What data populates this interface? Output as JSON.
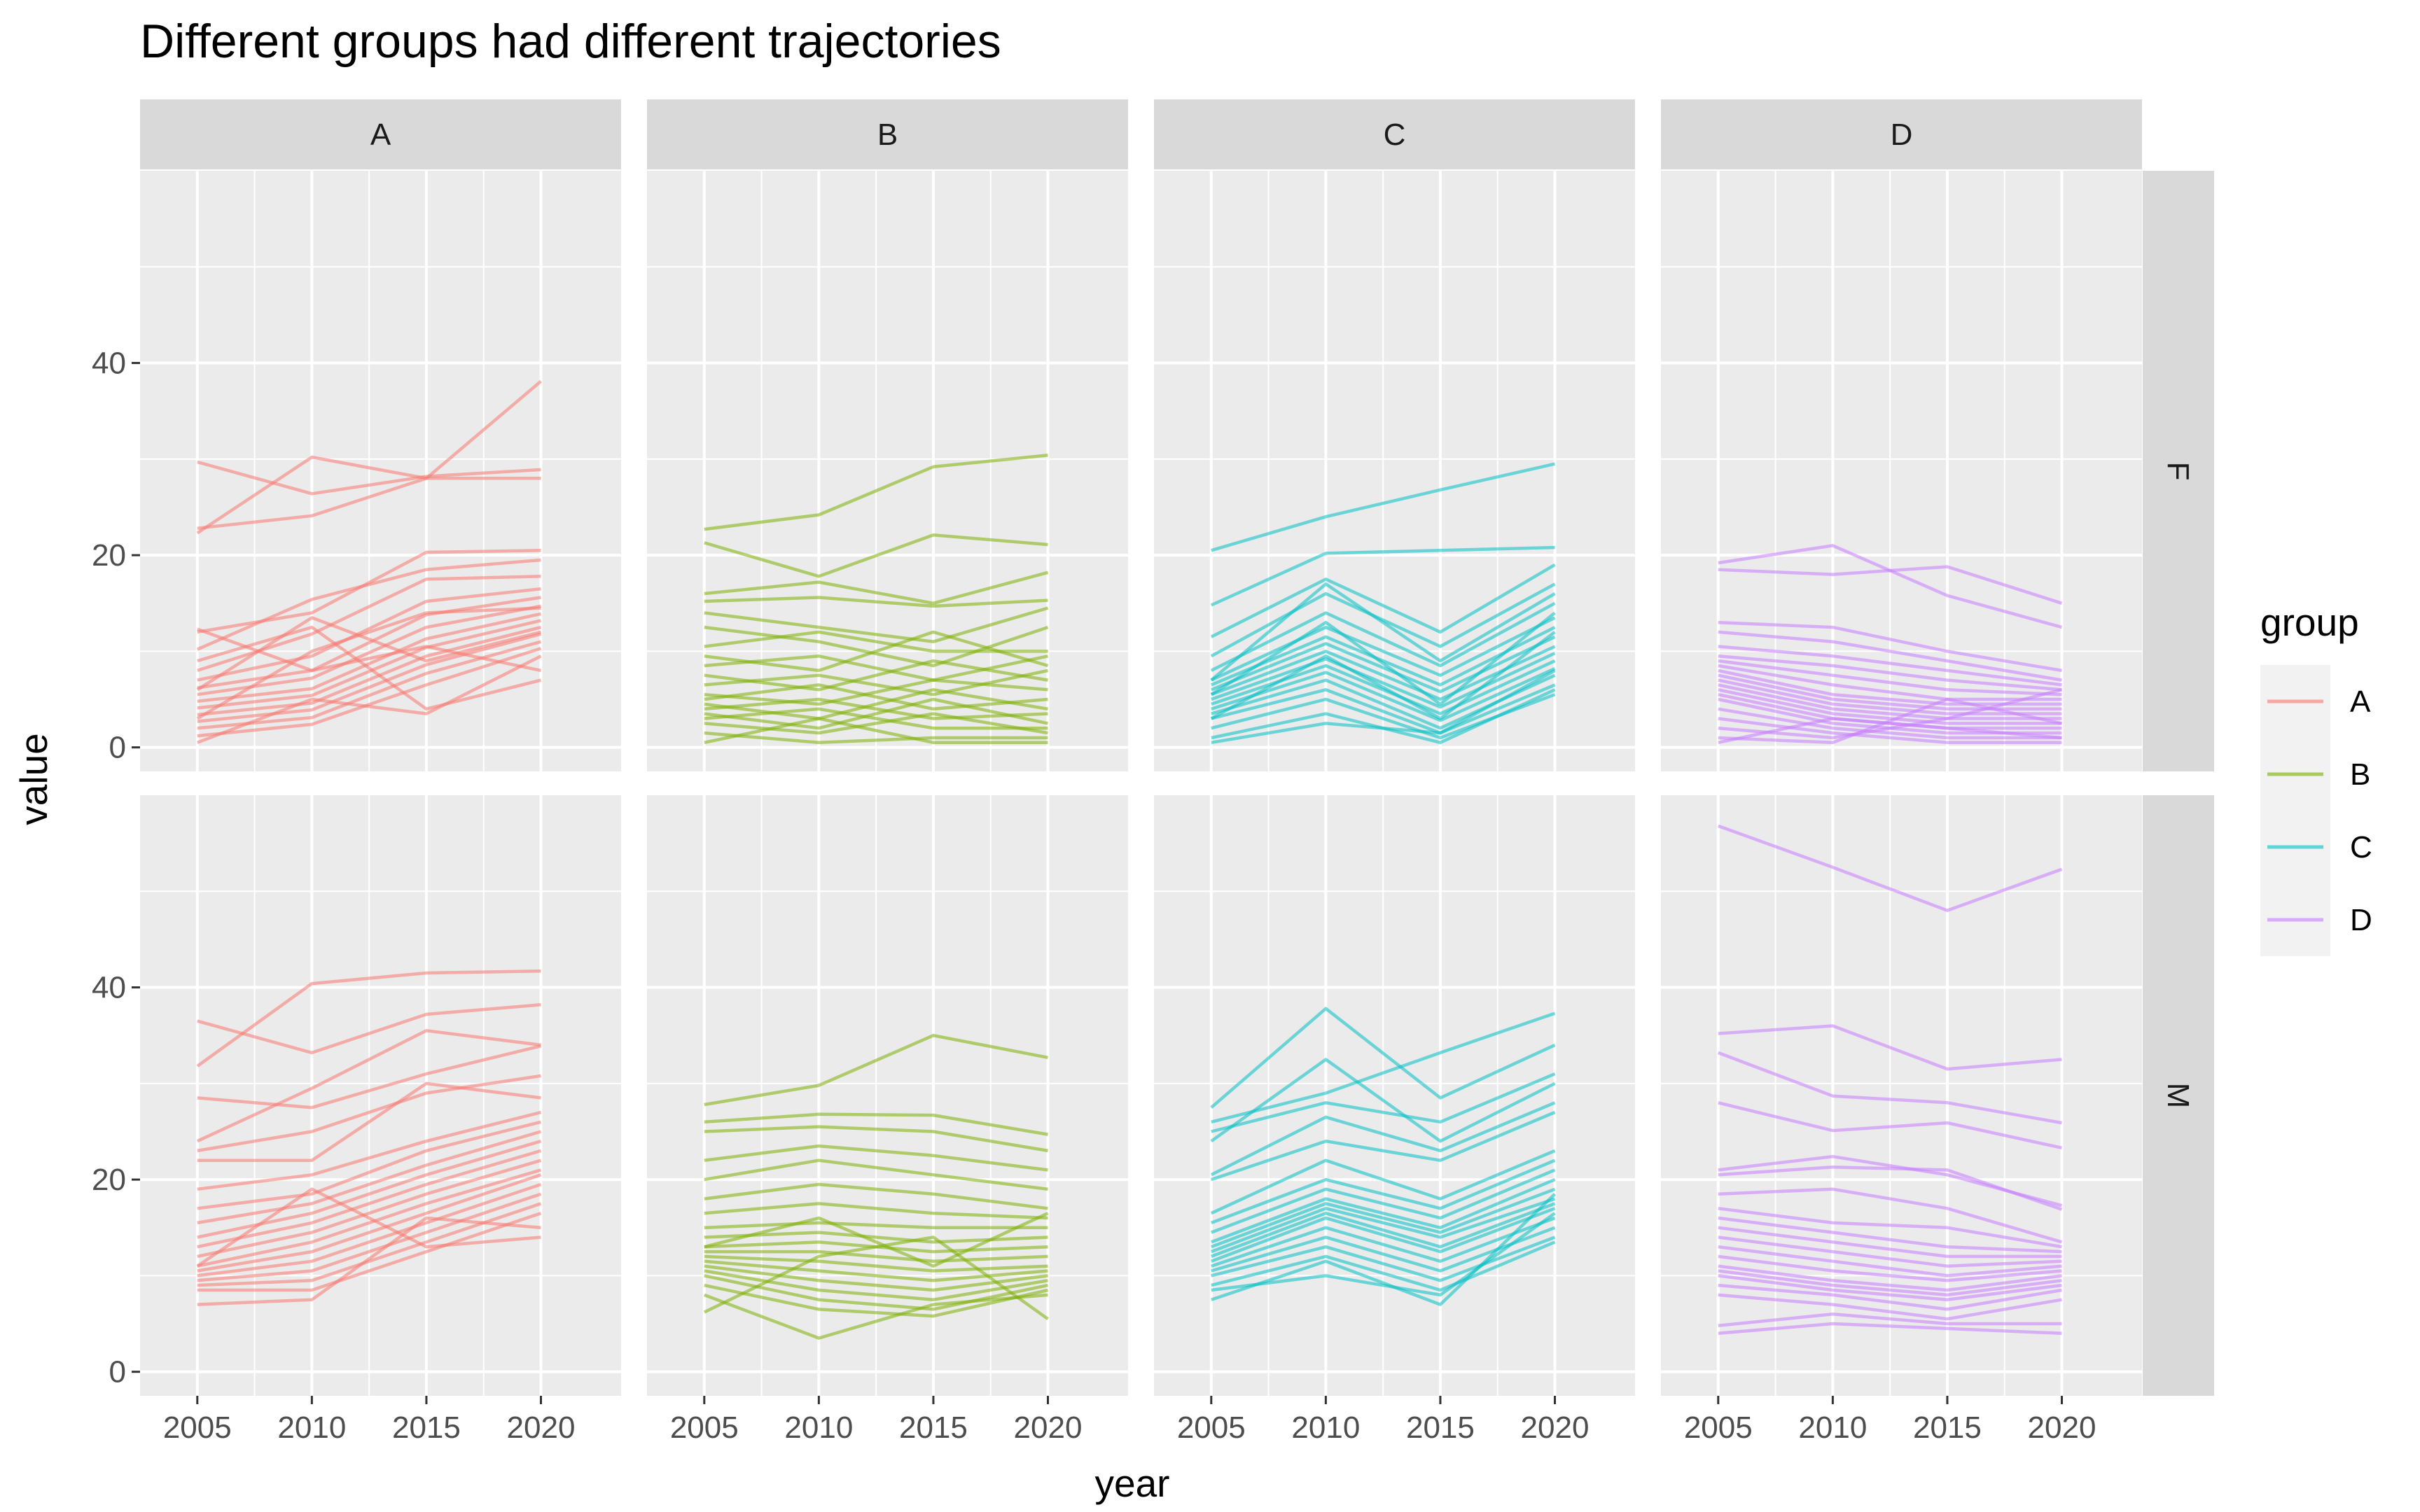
{
  "chart_data": {
    "type": "line",
    "title": "Different groups had different trajectories",
    "xlabel": "year",
    "ylabel": "value",
    "x": [
      2005,
      2010,
      2015,
      2020
    ],
    "xlim": [
      2002.5,
      2023.5
    ],
    "ylim": [
      -2.5,
      60
    ],
    "y_ticks": [
      0,
      20,
      40
    ],
    "y_minor_ticks": [
      10,
      30,
      50
    ],
    "grid": true,
    "facet_columns": [
      "A",
      "B",
      "C",
      "D"
    ],
    "facet_rows": [
      "F",
      "M"
    ],
    "legend": {
      "title": "group",
      "position": "right",
      "entries": [
        {
          "label": "A",
          "color": "#F8766D"
        },
        {
          "label": "B",
          "color": "#7CAE00"
        },
        {
          "label": "C",
          "color": "#00BFC4"
        },
        {
          "label": "D",
          "color": "#C77CFF"
        }
      ]
    },
    "panels": [
      {
        "group": "A",
        "sex": "F",
        "color": "#F8766D",
        "series": [
          [
            29.7,
            26.4,
            28.2,
            28.9
          ],
          [
            22.3,
            30.2,
            28.0,
            38.1
          ],
          [
            22.8,
            24.1,
            28.0,
            28.0
          ],
          [
            12.0,
            14.0,
            20.3,
            20.5
          ],
          [
            10.2,
            15.4,
            18.5,
            19.5
          ],
          [
            8.0,
            11.8,
            17.5,
            17.8
          ],
          [
            7.0,
            9.5,
            15.2,
            16.5
          ],
          [
            6.2,
            8.0,
            13.8,
            15.6
          ],
          [
            5.5,
            7.2,
            12.5,
            14.7
          ],
          [
            4.8,
            6.1,
            11.3,
            13.9
          ],
          [
            4.1,
            5.4,
            10.4,
            13.2
          ],
          [
            3.4,
            4.6,
            9.5,
            12.5
          ],
          [
            2.7,
            3.9,
            8.6,
            11.8
          ],
          [
            2.0,
            3.1,
            7.7,
            11.0
          ],
          [
            1.2,
            2.4,
            6.5,
            10.3
          ],
          [
            0.5,
            5.0,
            3.5,
            9.5
          ],
          [
            12.3,
            8.0,
            10.5,
            8.0
          ],
          [
            9.0,
            12.5,
            4.0,
            7.0
          ],
          [
            6.0,
            13.5,
            9.0,
            12.0
          ],
          [
            3.0,
            10.0,
            14.0,
            14.5
          ]
        ]
      },
      {
        "group": "B",
        "sex": "F",
        "color": "#7CAE00",
        "series": [
          [
            22.7,
            24.2,
            29.2,
            30.4
          ],
          [
            21.3,
            17.8,
            22.1,
            21.1
          ],
          [
            16.0,
            17.2,
            15.0,
            18.2
          ],
          [
            15.2,
            15.6,
            14.7,
            15.3
          ],
          [
            14.0,
            12.5,
            11.0,
            14.5
          ],
          [
            12.5,
            11.0,
            8.5,
            12.5
          ],
          [
            10.5,
            12.0,
            10.0,
            10.0
          ],
          [
            9.5,
            8.0,
            12.0,
            8.5
          ],
          [
            8.5,
            9.5,
            7.0,
            9.5
          ],
          [
            7.5,
            6.0,
            9.0,
            7.0
          ],
          [
            6.5,
            7.5,
            5.5,
            8.0
          ],
          [
            5.5,
            4.5,
            7.0,
            6.0
          ],
          [
            5.0,
            6.5,
            4.0,
            5.0
          ],
          [
            4.5,
            3.0,
            6.0,
            4.0
          ],
          [
            4.0,
            5.0,
            3.0,
            3.5
          ],
          [
            3.5,
            2.0,
            5.0,
            2.5
          ],
          [
            3.0,
            4.0,
            2.0,
            2.0
          ],
          [
            2.5,
            1.5,
            3.5,
            1.5
          ],
          [
            1.5,
            0.5,
            1.0,
            1.0
          ],
          [
            0.5,
            3.0,
            0.5,
            0.5
          ]
        ]
      },
      {
        "group": "C",
        "sex": "F",
        "color": "#00BFC4",
        "series": [
          [
            20.5,
            24.0,
            26.8,
            29.5
          ],
          [
            14.8,
            20.2,
            20.5,
            20.8
          ],
          [
            11.5,
            17.5,
            12.0,
            19.0
          ],
          [
            9.5,
            16.0,
            10.5,
            17.0
          ],
          [
            8.0,
            14.0,
            8.5,
            15.0
          ],
          [
            7.0,
            12.5,
            7.5,
            13.5
          ],
          [
            6.5,
            11.5,
            6.5,
            12.5
          ],
          [
            6.0,
            10.8,
            5.8,
            11.5
          ],
          [
            5.5,
            10.0,
            5.0,
            10.5
          ],
          [
            5.0,
            9.2,
            4.2,
            9.8
          ],
          [
            4.5,
            8.5,
            3.5,
            9.0
          ],
          [
            4.0,
            7.8,
            2.8,
            8.2
          ],
          [
            3.5,
            7.0,
            2.0,
            7.5
          ],
          [
            3.0,
            6.0,
            1.5,
            6.5
          ],
          [
            2.0,
            5.0,
            1.0,
            5.5
          ],
          [
            1.0,
            3.5,
            0.5,
            6.0
          ],
          [
            0.5,
            2.5,
            1.5,
            8.0
          ],
          [
            7.0,
            17.0,
            9.0,
            16.0
          ],
          [
            5.5,
            13.0,
            4.5,
            14.0
          ],
          [
            3.0,
            9.5,
            3.0,
            12.0
          ]
        ]
      },
      {
        "group": "D",
        "sex": "F",
        "color": "#C77CFF",
        "series": [
          [
            19.2,
            21.0,
            15.8,
            12.5
          ],
          [
            18.5,
            18.0,
            18.8,
            15.0
          ],
          [
            13.0,
            12.5,
            10.0,
            8.0
          ],
          [
            12.0,
            11.0,
            9.0,
            7.0
          ],
          [
            10.5,
            9.5,
            8.0,
            6.5
          ],
          [
            9.5,
            8.5,
            7.0,
            6.0
          ],
          [
            9.0,
            7.5,
            6.0,
            5.5
          ],
          [
            8.5,
            6.5,
            5.0,
            5.0
          ],
          [
            8.0,
            5.5,
            4.5,
            4.5
          ],
          [
            7.5,
            5.0,
            4.0,
            4.0
          ],
          [
            7.0,
            4.5,
            3.5,
            3.5
          ],
          [
            6.5,
            4.0,
            3.0,
            3.0
          ],
          [
            6.0,
            3.5,
            2.5,
            2.5
          ],
          [
            5.5,
            3.0,
            2.0,
            2.0
          ],
          [
            5.0,
            2.5,
            1.5,
            1.5
          ],
          [
            4.0,
            2.0,
            1.0,
            1.0
          ],
          [
            3.0,
            1.5,
            0.5,
            0.5
          ],
          [
            2.0,
            1.0,
            3.0,
            6.0
          ],
          [
            1.0,
            0.5,
            5.0,
            2.5
          ],
          [
            0.5,
            3.0,
            2.0,
            1.0
          ]
        ]
      },
      {
        "group": "A",
        "sex": "M",
        "color": "#F8766D",
        "series": [
          [
            36.5,
            33.2,
            37.2,
            38.2
          ],
          [
            31.8,
            40.4,
            41.5,
            41.7
          ],
          [
            28.5,
            27.5,
            31.0,
            33.9
          ],
          [
            24.0,
            29.5,
            35.5,
            34.0
          ],
          [
            23.0,
            25.0,
            29.0,
            30.8
          ],
          [
            22.0,
            22.0,
            30.0,
            28.5
          ],
          [
            19.0,
            20.5,
            24.0,
            27.0
          ],
          [
            17.0,
            18.5,
            23.0,
            26.0
          ],
          [
            15.5,
            17.5,
            21.5,
            25.0
          ],
          [
            14.0,
            16.5,
            20.5,
            24.0
          ],
          [
            13.0,
            15.5,
            19.5,
            23.0
          ],
          [
            12.0,
            14.5,
            18.5,
            22.0
          ],
          [
            11.0,
            13.5,
            17.5,
            21.0
          ],
          [
            10.5,
            12.5,
            16.5,
            20.5
          ],
          [
            10.0,
            11.5,
            15.5,
            19.5
          ],
          [
            9.5,
            10.5,
            14.5,
            18.5
          ],
          [
            9.0,
            9.5,
            13.5,
            17.5
          ],
          [
            8.5,
            8.5,
            12.5,
            16.5
          ],
          [
            7.0,
            7.5,
            16.0,
            15.0
          ],
          [
            11.0,
            19.0,
            13.0,
            14.0
          ]
        ]
      },
      {
        "group": "B",
        "sex": "M",
        "color": "#7CAE00",
        "series": [
          [
            27.8,
            29.8,
            35.0,
            32.7
          ],
          [
            26.0,
            26.8,
            26.7,
            24.7
          ],
          [
            25.0,
            25.5,
            25.0,
            23.0
          ],
          [
            22.0,
            23.5,
            22.5,
            21.0
          ],
          [
            20.0,
            22.0,
            20.5,
            19.0
          ],
          [
            18.0,
            19.5,
            18.5,
            17.0
          ],
          [
            16.5,
            17.5,
            16.5,
            16.0
          ],
          [
            15.0,
            15.5,
            15.0,
            15.0
          ],
          [
            14.0,
            14.5,
            13.5,
            14.0
          ],
          [
            13.0,
            13.5,
            12.5,
            13.0
          ],
          [
            12.5,
            12.5,
            11.5,
            12.0
          ],
          [
            12.0,
            11.5,
            10.5,
            11.0
          ],
          [
            11.5,
            10.5,
            9.5,
            10.5
          ],
          [
            11.0,
            9.5,
            8.5,
            10.0
          ],
          [
            10.5,
            8.5,
            7.5,
            9.5
          ],
          [
            10.0,
            7.5,
            6.5,
            9.0
          ],
          [
            9.0,
            6.5,
            5.8,
            8.5
          ],
          [
            8.0,
            3.5,
            7.0,
            8.0
          ],
          [
            6.2,
            12.0,
            14.0,
            5.5
          ],
          [
            13.0,
            16.0,
            11.0,
            16.5
          ]
        ]
      },
      {
        "group": "C",
        "sex": "M",
        "color": "#00BFC4",
        "series": [
          [
            27.5,
            37.8,
            28.5,
            34.0
          ],
          [
            26.0,
            29.0,
            33.2,
            37.3
          ],
          [
            25.0,
            28.0,
            26.0,
            31.0
          ],
          [
            24.0,
            32.5,
            24.0,
            30.0
          ],
          [
            20.5,
            26.5,
            23.0,
            28.0
          ],
          [
            20.0,
            24.0,
            22.0,
            27.0
          ],
          [
            16.5,
            22.0,
            18.0,
            23.0
          ],
          [
            15.5,
            20.0,
            17.0,
            22.0
          ],
          [
            14.5,
            19.0,
            16.0,
            21.0
          ],
          [
            13.5,
            18.0,
            15.0,
            20.0
          ],
          [
            13.0,
            17.5,
            14.5,
            19.0
          ],
          [
            12.5,
            17.0,
            14.0,
            18.0
          ],
          [
            12.0,
            16.5,
            13.0,
            17.5
          ],
          [
            11.5,
            16.0,
            12.5,
            17.0
          ],
          [
            11.0,
            15.0,
            11.5,
            16.0
          ],
          [
            10.5,
            14.0,
            10.5,
            15.0
          ],
          [
            10.0,
            13.0,
            9.5,
            14.0
          ],
          [
            9.0,
            12.0,
            8.5,
            13.5
          ],
          [
            8.5,
            10.0,
            8.0,
            16.5
          ],
          [
            7.5,
            11.5,
            7.0,
            18.5
          ]
        ]
      },
      {
        "group": "D",
        "sex": "M",
        "color": "#C77CFF",
        "series": [
          [
            56.8,
            52.5,
            48.0,
            52.3
          ],
          [
            35.2,
            36.0,
            31.5,
            32.5
          ],
          [
            33.2,
            28.7,
            28.0,
            25.9
          ],
          [
            28.0,
            25.1,
            25.9,
            23.3
          ],
          [
            21.0,
            22.4,
            20.5,
            17.3
          ],
          [
            20.5,
            21.3,
            21.0,
            16.9
          ],
          [
            18.5,
            19.0,
            17.0,
            13.5
          ],
          [
            17.0,
            15.5,
            15.0,
            13.0
          ],
          [
            16.0,
            14.5,
            13.0,
            12.5
          ],
          [
            15.0,
            13.5,
            12.0,
            12.0
          ],
          [
            14.0,
            12.5,
            11.0,
            11.5
          ],
          [
            13.0,
            11.5,
            10.0,
            11.0
          ],
          [
            12.0,
            10.5,
            9.5,
            10.5
          ],
          [
            11.0,
            9.5,
            8.5,
            10.0
          ],
          [
            10.5,
            9.0,
            8.0,
            9.5
          ],
          [
            10.0,
            8.5,
            7.5,
            9.0
          ],
          [
            9.0,
            8.0,
            6.5,
            8.5
          ],
          [
            8.0,
            7.0,
            5.5,
            7.5
          ],
          [
            4.8,
            6.0,
            5.0,
            5.0
          ],
          [
            4.0,
            5.0,
            4.5,
            4.0
          ]
        ]
      }
    ]
  }
}
